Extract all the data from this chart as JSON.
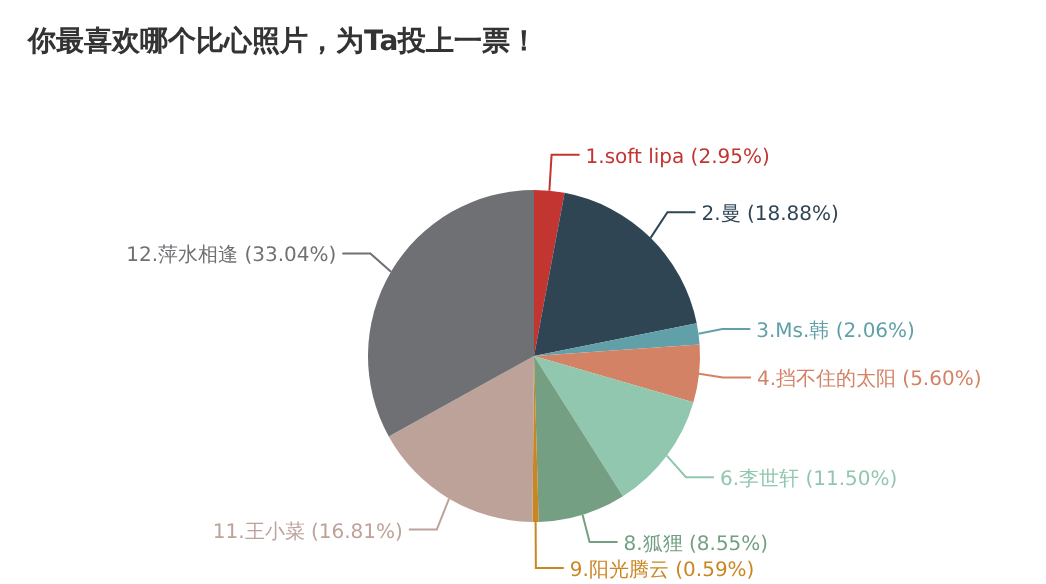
{
  "chart_data": {
    "type": "pie",
    "title": "你最喜欢哪个比心照片，为Ta投上一票！",
    "categories": [
      "1.soft lipa",
      "2.曼",
      "3.Ms.韩",
      "4.挡不住的太阳",
      "6.李世轩",
      "8.狐狸",
      "9.阳光腾云",
      "11.王小菜",
      "12.萍水相逢"
    ],
    "values": [
      2.95,
      18.88,
      2.06,
      5.6,
      11.5,
      8.55,
      0.59,
      16.81,
      33.04
    ],
    "value_labels": [
      "(2.95%)",
      "(18.88%)",
      "(2.06%)",
      "(5.60%)",
      "(11.50%)",
      "(8.55%)",
      "(0.59%)",
      "(16.81%)",
      "(33.04%)"
    ],
    "colors": [
      "#c23531",
      "#2f4554",
      "#61a0a8",
      "#d48265",
      "#91c7ae",
      "#749f83",
      "#ca8622",
      "#bda29a",
      "#6e7074"
    ]
  }
}
